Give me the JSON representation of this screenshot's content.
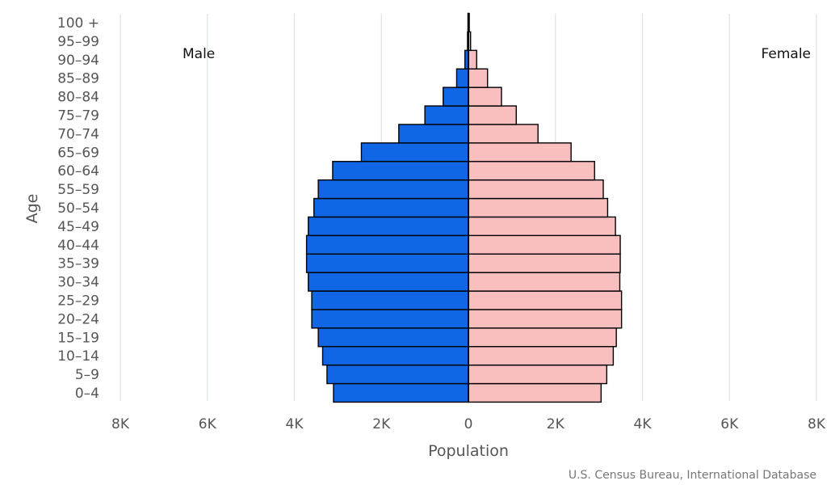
{
  "chart_data": {
    "type": "bar",
    "orientation": "horizontal",
    "subtype": "population-pyramid",
    "categories": [
      "0-4",
      "5-9",
      "10-14",
      "15-19",
      "20-24",
      "25-29",
      "30-34",
      "35-39",
      "40-44",
      "45-49",
      "50-54",
      "55-59",
      "60-64",
      "65-69",
      "70-74",
      "75-79",
      "80-84",
      "85-89",
      "90-94",
      "95-99",
      "100 +"
    ],
    "category_labels": [
      "0–4",
      "5–9",
      "10–14",
      "15–19",
      "20–24",
      "25–29",
      "30–34",
      "35–39",
      "40–44",
      "45–49",
      "50–54",
      "55–59",
      "60–64",
      "65–69",
      "70–74",
      "75–79",
      "80–84",
      "85–89",
      "90–94",
      "95–99",
      "100 +"
    ],
    "series": [
      {
        "name": "Male",
        "color": "#1166e6",
        "values": [
          3100,
          3250,
          3350,
          3450,
          3600,
          3600,
          3680,
          3720,
          3720,
          3680,
          3550,
          3450,
          3120,
          2460,
          1600,
          1000,
          580,
          270,
          80,
          20,
          10
        ]
      },
      {
        "name": "Female",
        "color": "#f9bfbf",
        "values": [
          3050,
          3180,
          3330,
          3400,
          3520,
          3520,
          3480,
          3490,
          3490,
          3380,
          3200,
          3100,
          2900,
          2360,
          1600,
          1100,
          760,
          440,
          190,
          50,
          20
        ]
      }
    ],
    "xlabel": "Population",
    "ylabel": "Age",
    "xlim": [
      -8000,
      8000
    ],
    "xticks": [
      -8000,
      -6000,
      -4000,
      -2000,
      0,
      2000,
      4000,
      6000,
      8000
    ],
    "xtick_labels": [
      "8K",
      "6K",
      "4K",
      "2K",
      "0",
      "2K",
      "4K",
      "6K",
      "8K"
    ],
    "grid": true,
    "side_labels": {
      "left": "Male",
      "right": "Female"
    },
    "credit": "U.S. Census Bureau, International Database"
  }
}
